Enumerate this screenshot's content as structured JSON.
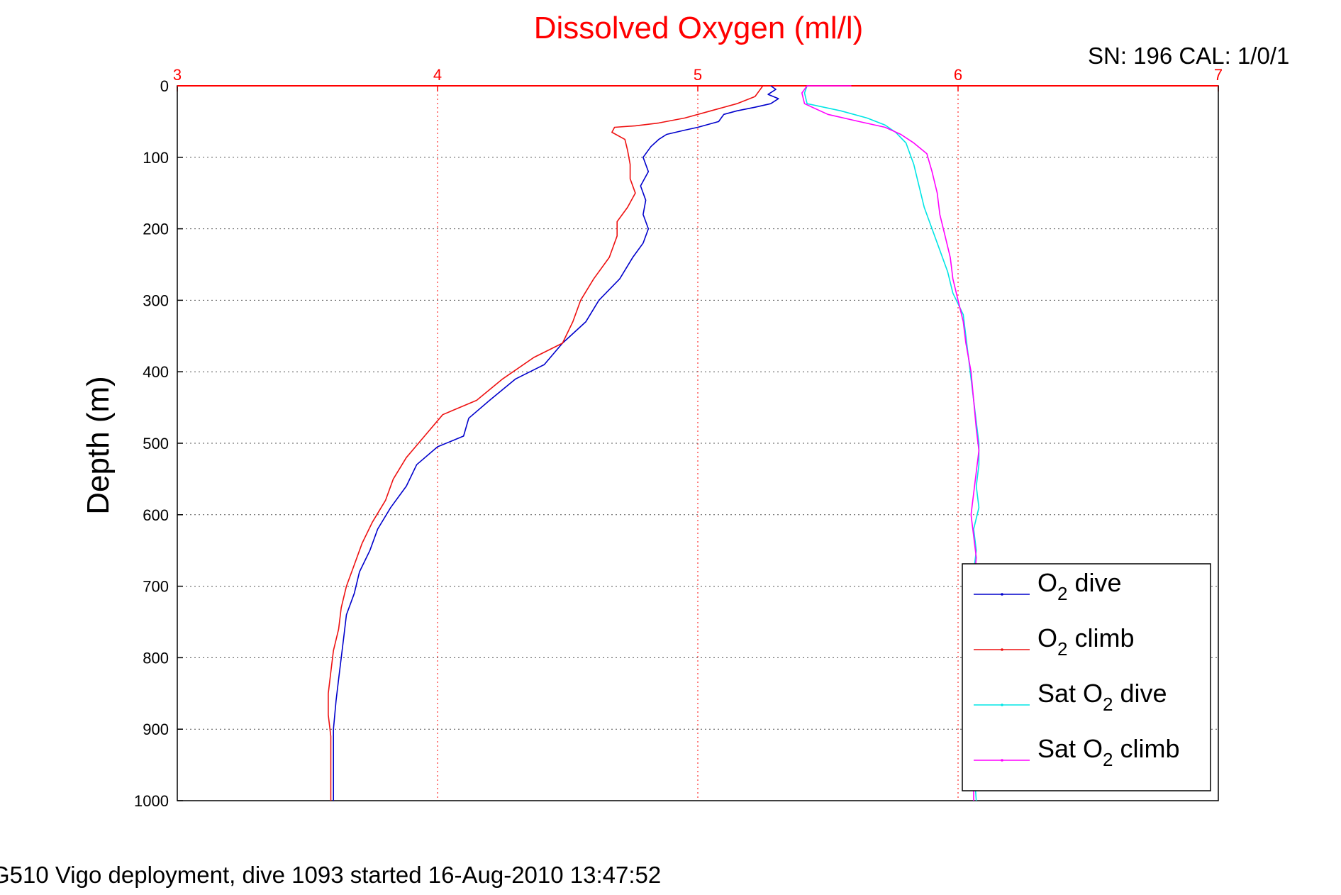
{
  "header": {
    "sn_cal": "SN: 196  CAL: 1/0/1"
  },
  "footer": {
    "caption": "G510 Vigo deployment, dive 1093 started 16-Aug-2010 13:47:52"
  },
  "colors": {
    "title": "#ff0000",
    "top_axis": "#ff0000",
    "o2_dive": "#0000cc",
    "o2_climb": "#ee1111",
    "sat_o2_dive": "#00e5e5",
    "sat_o2_climb": "#ff00ff",
    "grid": "#555555"
  },
  "chart_data": {
    "type": "line",
    "title": "Dissolved Oxygen (ml/l)",
    "xlabel": "",
    "ylabel": "Depth (m)",
    "xlim": [
      3,
      7
    ],
    "ylim": [
      0,
      1000
    ],
    "y_reversed": true,
    "x_axis_position": "top",
    "x_ticks": [
      "3",
      "4",
      "5",
      "6",
      "7"
    ],
    "y_ticks": [
      "0",
      "100",
      "200",
      "300",
      "400",
      "500",
      "600",
      "700",
      "800",
      "900",
      "1000"
    ],
    "grid": true,
    "legend_position": "bottom-right",
    "legend": [
      {
        "key": "o2_dive",
        "base": "O",
        "sub": "2",
        "suffix": " dive"
      },
      {
        "key": "o2_climb",
        "base": "O",
        "sub": "2",
        "suffix": " climb"
      },
      {
        "key": "sat_o2_dive",
        "base": "Sat O",
        "sub": "2",
        "suffix": " dive"
      },
      {
        "key": "sat_o2_climb",
        "base": "Sat O",
        "sub": "2",
        "suffix": " climb"
      }
    ],
    "series": [
      {
        "key": "o2_dive",
        "points": [
          [
            5.28,
            0
          ],
          [
            5.3,
            5
          ],
          [
            5.27,
            12
          ],
          [
            5.31,
            18
          ],
          [
            5.28,
            25
          ],
          [
            5.22,
            30
          ],
          [
            5.15,
            35
          ],
          [
            5.1,
            40
          ],
          [
            5.08,
            50
          ],
          [
            5.0,
            58
          ],
          [
            4.95,
            62
          ],
          [
            4.88,
            68
          ],
          [
            4.85,
            75
          ],
          [
            4.82,
            85
          ],
          [
            4.79,
            100
          ],
          [
            4.81,
            120
          ],
          [
            4.78,
            140
          ],
          [
            4.8,
            160
          ],
          [
            4.79,
            180
          ],
          [
            4.81,
            200
          ],
          [
            4.79,
            220
          ],
          [
            4.75,
            240
          ],
          [
            4.7,
            270
          ],
          [
            4.62,
            300
          ],
          [
            4.57,
            330
          ],
          [
            4.48,
            360
          ],
          [
            4.41,
            390
          ],
          [
            4.3,
            410
          ],
          [
            4.2,
            440
          ],
          [
            4.12,
            465
          ],
          [
            4.1,
            490
          ],
          [
            4.0,
            505
          ],
          [
            3.92,
            530
          ],
          [
            3.88,
            560
          ],
          [
            3.82,
            590
          ],
          [
            3.77,
            620
          ],
          [
            3.74,
            650
          ],
          [
            3.7,
            680
          ],
          [
            3.68,
            710
          ],
          [
            3.65,
            740
          ],
          [
            3.64,
            770
          ],
          [
            3.63,
            800
          ],
          [
            3.62,
            830
          ],
          [
            3.61,
            860
          ],
          [
            3.6,
            900
          ],
          [
            3.6,
            940
          ],
          [
            3.6,
            970
          ],
          [
            3.6,
            1000
          ]
        ]
      },
      {
        "key": "o2_climb",
        "points": [
          [
            5.25,
            0
          ],
          [
            5.22,
            15
          ],
          [
            5.15,
            25
          ],
          [
            5.05,
            35
          ],
          [
            4.95,
            45
          ],
          [
            4.85,
            52
          ],
          [
            4.76,
            56
          ],
          [
            4.68,
            58
          ],
          [
            4.67,
            65
          ],
          [
            4.72,
            75
          ],
          [
            4.73,
            90
          ],
          [
            4.74,
            110
          ],
          [
            4.74,
            130
          ],
          [
            4.76,
            150
          ],
          [
            4.73,
            170
          ],
          [
            4.69,
            190
          ],
          [
            4.69,
            210
          ],
          [
            4.66,
            240
          ],
          [
            4.6,
            270
          ],
          [
            4.55,
            300
          ],
          [
            4.52,
            330
          ],
          [
            4.48,
            360
          ],
          [
            4.37,
            380
          ],
          [
            4.25,
            410
          ],
          [
            4.15,
            440
          ],
          [
            4.02,
            460
          ],
          [
            3.95,
            490
          ],
          [
            3.88,
            520
          ],
          [
            3.83,
            550
          ],
          [
            3.8,
            580
          ],
          [
            3.75,
            610
          ],
          [
            3.71,
            640
          ],
          [
            3.68,
            670
          ],
          [
            3.65,
            700
          ],
          [
            3.63,
            730
          ],
          [
            3.62,
            760
          ],
          [
            3.6,
            790
          ],
          [
            3.59,
            820
          ],
          [
            3.58,
            850
          ],
          [
            3.58,
            880
          ],
          [
            3.59,
            910
          ],
          [
            3.59,
            940
          ],
          [
            3.59,
            970
          ],
          [
            3.59,
            1000
          ]
        ]
      },
      {
        "key": "sat_o2_dive",
        "points": [
          [
            5.42,
            0
          ],
          [
            5.41,
            10
          ],
          [
            5.42,
            25
          ],
          [
            5.55,
            35
          ],
          [
            5.65,
            45
          ],
          [
            5.72,
            55
          ],
          [
            5.76,
            65
          ],
          [
            5.8,
            80
          ],
          [
            5.83,
            110
          ],
          [
            5.85,
            140
          ],
          [
            5.87,
            170
          ],
          [
            5.9,
            200
          ],
          [
            5.93,
            230
          ],
          [
            5.96,
            260
          ],
          [
            5.98,
            290
          ],
          [
            6.02,
            320
          ],
          [
            6.03,
            350
          ],
          [
            6.04,
            380
          ],
          [
            6.05,
            410
          ],
          [
            6.06,
            440
          ],
          [
            6.07,
            470
          ],
          [
            6.08,
            500
          ],
          [
            6.08,
            530
          ],
          [
            6.07,
            560
          ],
          [
            6.08,
            590
          ],
          [
            6.06,
            620
          ],
          [
            6.07,
            650
          ],
          [
            6.06,
            680
          ],
          [
            6.07,
            710
          ],
          [
            6.06,
            750
          ],
          [
            6.06,
            800
          ],
          [
            6.06,
            850
          ],
          [
            6.06,
            900
          ],
          [
            6.06,
            950
          ],
          [
            6.07,
            1000
          ]
        ]
      },
      {
        "key": "sat_o2_climb",
        "points": [
          [
            5.59,
            0
          ],
          [
            5.42,
            0
          ],
          [
            5.4,
            10
          ],
          [
            5.41,
            25
          ],
          [
            5.5,
            40
          ],
          [
            5.62,
            50
          ],
          [
            5.72,
            58
          ],
          [
            5.78,
            68
          ],
          [
            5.83,
            80
          ],
          [
            5.88,
            95
          ],
          [
            5.9,
            120
          ],
          [
            5.92,
            150
          ],
          [
            5.93,
            180
          ],
          [
            5.95,
            210
          ],
          [
            5.97,
            240
          ],
          [
            5.98,
            270
          ],
          [
            6.0,
            300
          ],
          [
            6.02,
            330
          ],
          [
            6.03,
            360
          ],
          [
            6.05,
            400
          ],
          [
            6.06,
            440
          ],
          [
            6.07,
            480
          ],
          [
            6.08,
            510
          ],
          [
            6.07,
            540
          ],
          [
            6.06,
            570
          ],
          [
            6.05,
            600
          ],
          [
            6.06,
            630
          ],
          [
            6.07,
            660
          ],
          [
            6.06,
            700
          ],
          [
            6.06,
            750
          ],
          [
            6.06,
            800
          ],
          [
            6.06,
            850
          ],
          [
            6.06,
            900
          ],
          [
            6.06,
            950
          ],
          [
            6.06,
            1000
          ]
        ]
      }
    ]
  }
}
